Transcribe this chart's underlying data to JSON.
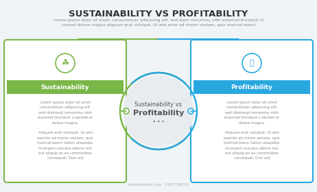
{
  "title": "SUSTAINABILITY VS PROFITABILITY",
  "subtitle": "Lorem ipsum dolor sit amet, consectetuer adipiscing elit, sed diam nonummy nibh euismod tincidunt ut\nlaoreet dolore magna aliquam erat volutpat. Ut wisi enim ad minim veniam, quis nostrud exerci",
  "divider_left_color": "#7ab648",
  "divider_right_color": "#29a8e0",
  "bg_color": "#f0f4f7",
  "left_box_color": "#7ab648",
  "right_box_color": "#29a8e0",
  "left_label": "Sustainability",
  "right_label": "Profitability",
  "center_line1": "Sustainability vs",
  "center_line2": "Profitability",
  "center_dots": "• • •",
  "body_text": "Lorem ipsum dolor sit amet\nconsectetuer adipiscing elit\nsedi diamorpi nonummy nibh\neuismod tincidunt u laoreet er\ndolore magna.\n\nAliquam erat volutpat. Ut wisi\nexenim ad minim veniam, quis\nnostrud exerci tation ullapedia\nmcorpeni suscipis laboris nisl\neut aliquip ex ea commodoes\nconsequat. Duis aut",
  "title_color": "#333333",
  "subtitle_color": "#888888",
  "label_text_color": "#ffffff",
  "body_text_color": "#888888",
  "center_circle_fill": "#e8ecef",
  "center_text_color": "#555555",
  "connector_color_left": "#7ab648",
  "connector_color_right": "#29a8e0"
}
